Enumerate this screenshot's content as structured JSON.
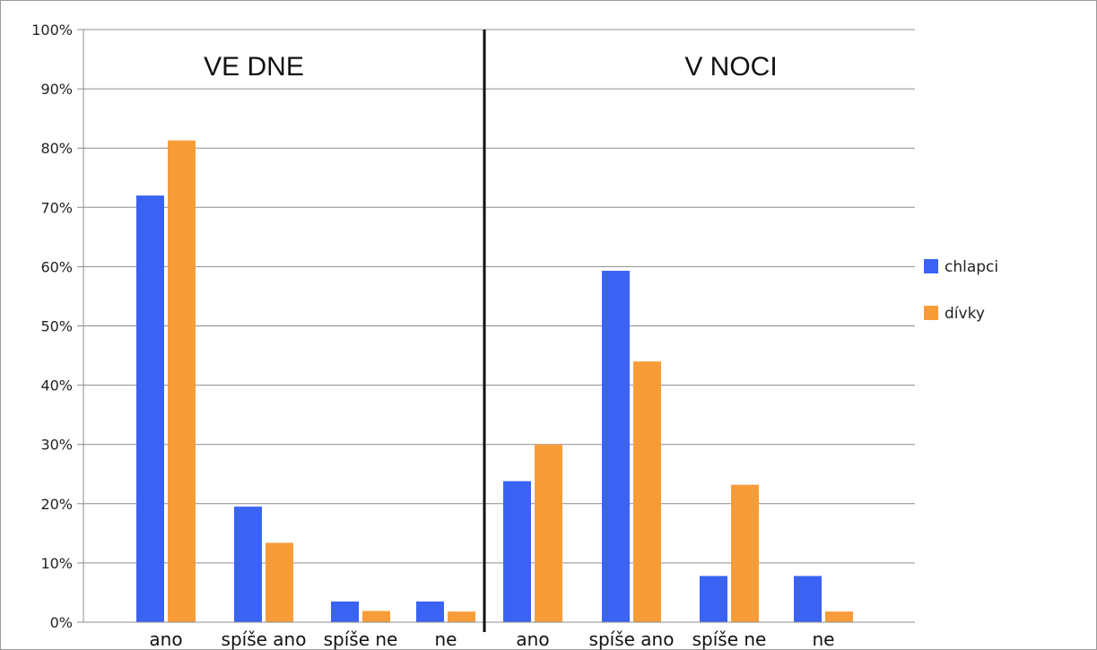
{
  "chart_data": {
    "type": "bar",
    "title": "",
    "xlabel": "",
    "ylabel": "",
    "ylim": [
      0,
      100
    ],
    "yticks": [
      "0%",
      "10%",
      "20%",
      "30%",
      "40%",
      "50%",
      "60%",
      "70%",
      "80%",
      "90%",
      "100%"
    ],
    "grid": true,
    "legend_position": "right",
    "sections": [
      "VE DNE",
      "V NOCI"
    ],
    "categories": [
      "ano",
      "spíše ano",
      "spíše ne",
      "ne",
      "ano",
      "spíše ano",
      "spíše ne",
      "ne"
    ],
    "series": [
      {
        "name": "chlapci",
        "color": "#3b63f3",
        "values": [
          72,
          19.5,
          3.5,
          3.5,
          23.8,
          59.3,
          7.8,
          7.8
        ]
      },
      {
        "name": "dívky",
        "color": "#f89c3a",
        "values": [
          81.3,
          13.4,
          1.9,
          1.8,
          30,
          44,
          23.2,
          1.8
        ]
      }
    ]
  }
}
